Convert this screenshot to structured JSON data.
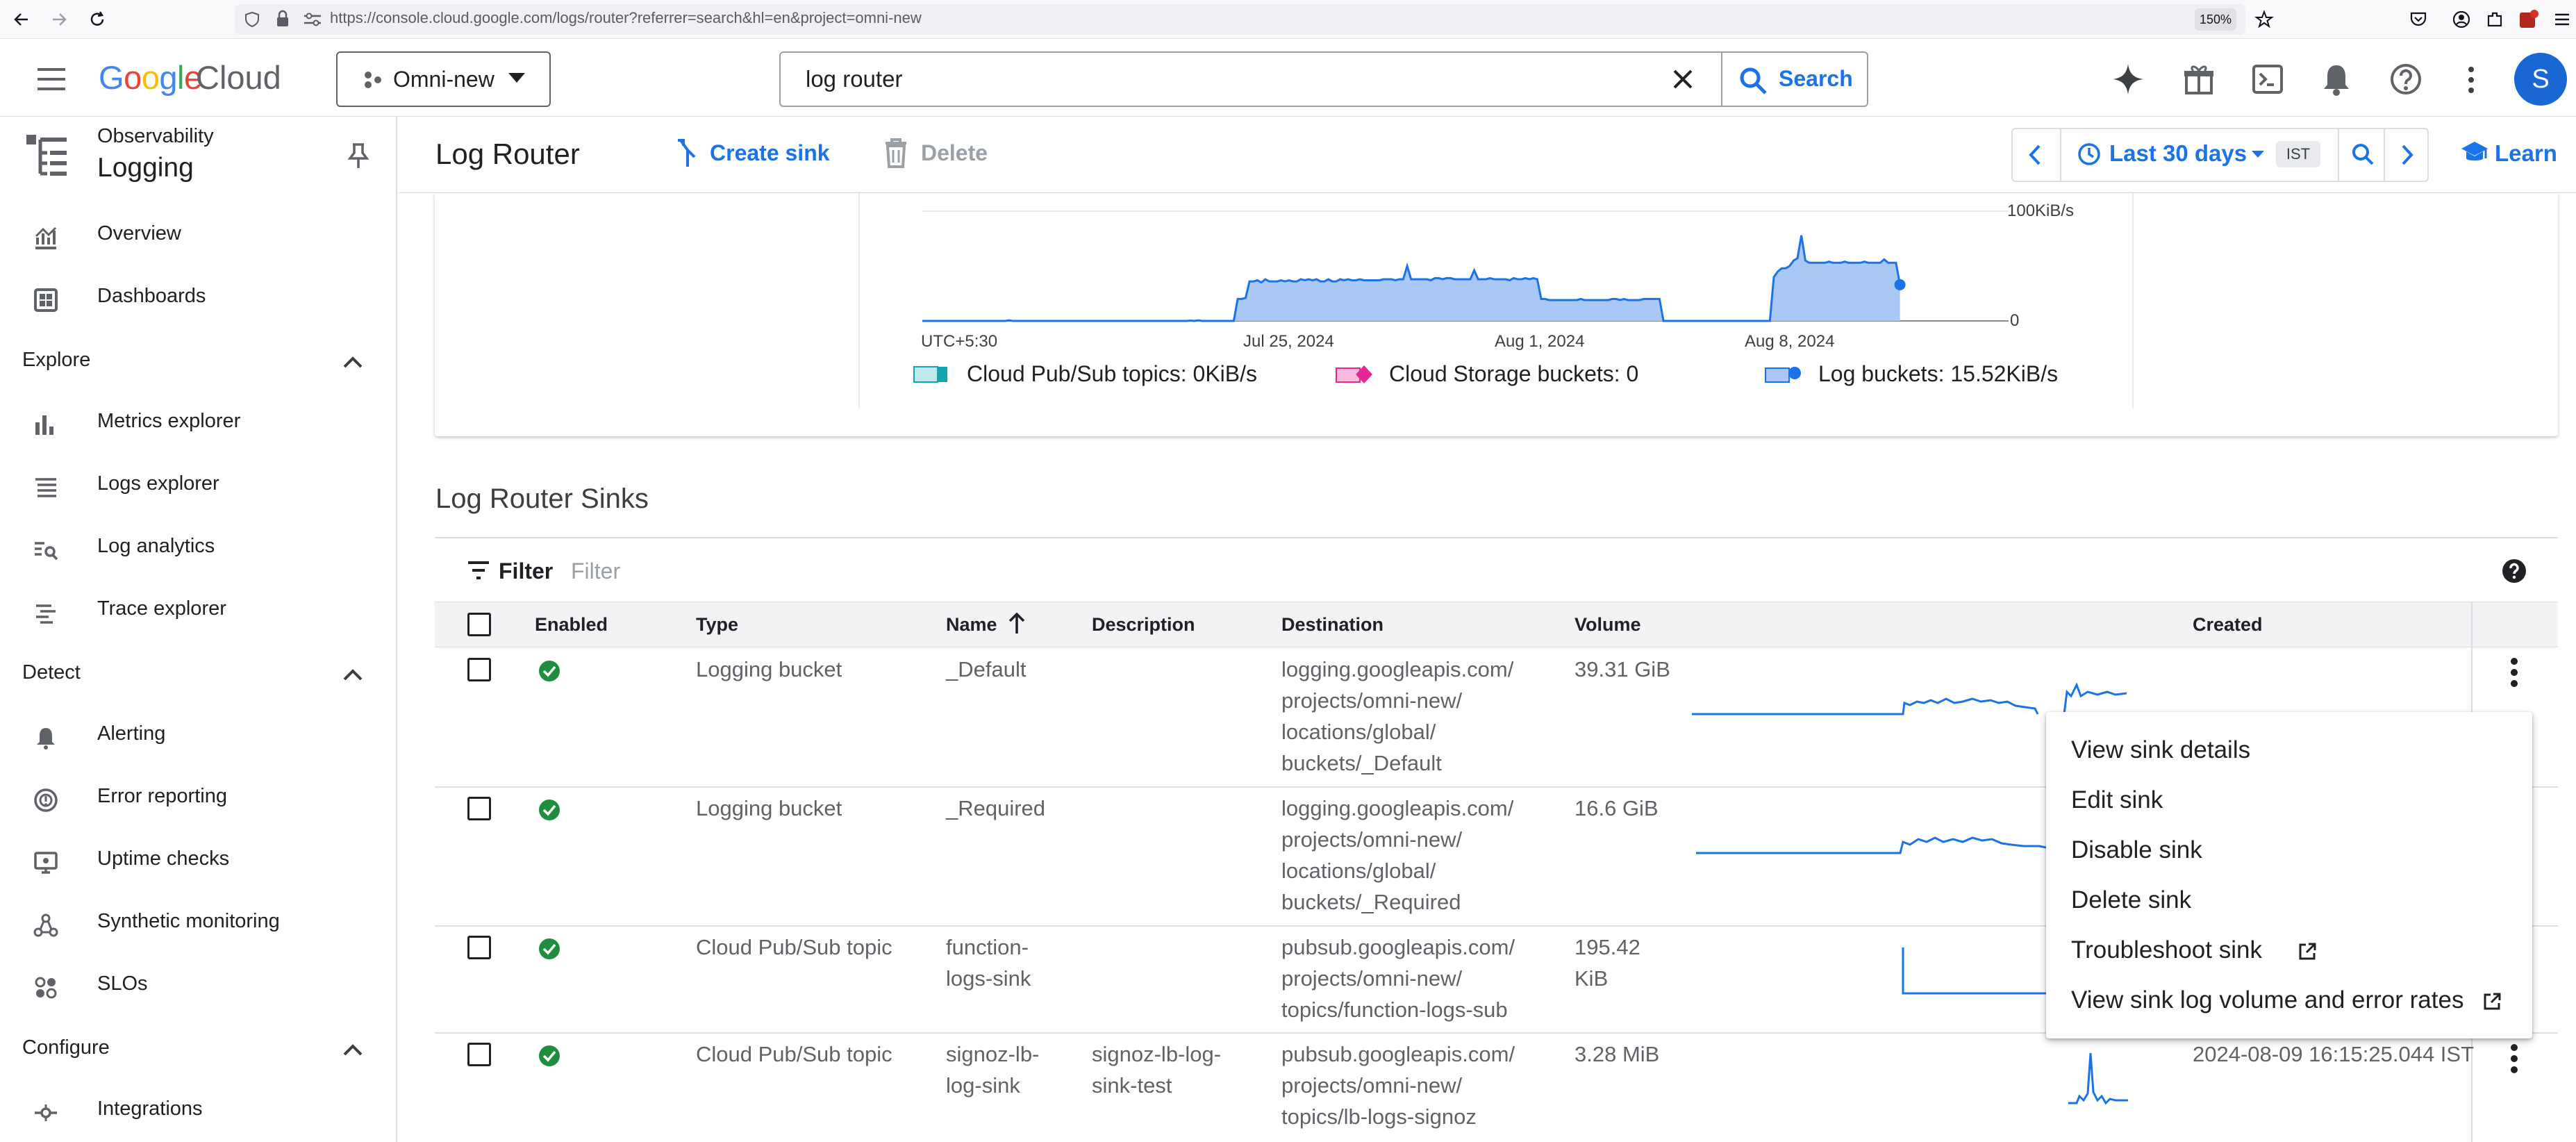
{
  "browser": {
    "url": "https://console.cloud.google.com/logs/router?referrer=search&hl=en&project=omni-new",
    "zoom": "150%"
  },
  "header": {
    "logo_google": "Google",
    "logo_cloud": "Cloud",
    "project": "Omni-new",
    "search_value": "log router",
    "search_button": "Search",
    "avatar_letter": "S"
  },
  "sidebar": {
    "product_parent": "Observability",
    "product": "Logging",
    "top_items": [
      {
        "label": "Overview",
        "icon": "overview-icon"
      },
      {
        "label": "Dashboards",
        "icon": "dashboards-icon"
      }
    ],
    "sections": [
      {
        "title": "Explore",
        "items": [
          "Metrics explorer",
          "Logs explorer",
          "Log analytics",
          "Trace explorer"
        ]
      },
      {
        "title": "Detect",
        "items": [
          "Alerting",
          "Error reporting",
          "Uptime checks",
          "Synthetic monitoring",
          "SLOs"
        ]
      },
      {
        "title": "Configure",
        "items": [
          "Integrations"
        ]
      }
    ]
  },
  "toolbar": {
    "title": "Log Router",
    "create_sink": "Create sink",
    "delete": "Delete",
    "time_range": "Last 30 days",
    "timezone": "IST",
    "learn": "Learn"
  },
  "chart_data": {
    "type": "area",
    "y_max_label": "100KiB/s",
    "y_min_label": "0",
    "x_ticks": [
      "UTC+5:30",
      "Jul 25, 2024",
      "Aug 1, 2024",
      "Aug 8, 2024"
    ],
    "series": [
      {
        "name": "Cloud Pub/Sub topics",
        "value_label": "0KiB/s",
        "color": "#12a4af"
      },
      {
        "name": "Cloud Storage buckets",
        "value_label": "0",
        "color": "#e52592"
      },
      {
        "name": "Log buckets",
        "value_label": "15.52KiB/s",
        "color": "#1a73e8"
      }
    ],
    "log_buckets_series": [
      0,
      0,
      0,
      0,
      0,
      0,
      0,
      0,
      0,
      0,
      0,
      0,
      0,
      0,
      0,
      0,
      0,
      0,
      0,
      0,
      0,
      0,
      0.5,
      0,
      0,
      0,
      0,
      0,
      0,
      0,
      0,
      0,
      0,
      0,
      0,
      0,
      0,
      0,
      0,
      0,
      0,
      0,
      0,
      0,
      0,
      0,
      0,
      0,
      0,
      0,
      0,
      0,
      0,
      0,
      0,
      0,
      0,
      0,
      0,
      0,
      0,
      0,
      0,
      0,
      0,
      0,
      0,
      0,
      0.3,
      0,
      0.5,
      0,
      0,
      0,
      0,
      0,
      0,
      0,
      0,
      0,
      20,
      20,
      21,
      36,
      36,
      37,
      35,
      38,
      36,
      36,
      36,
      37,
      36,
      37,
      36,
      36,
      38,
      37,
      38,
      37,
      38,
      36,
      36,
      38,
      36,
      36,
      38,
      37,
      38,
      37,
      37,
      38,
      37,
      37,
      37,
      37,
      37,
      38,
      38,
      38,
      37,
      38,
      38,
      50,
      38,
      38,
      38,
      38,
      38,
      37,
      39,
      39,
      38,
      39,
      39,
      38,
      38,
      38,
      38,
      38,
      46,
      38,
      38,
      38,
      39,
      38,
      38,
      38,
      38,
      37,
      39,
      38,
      38,
      39,
      38,
      39,
      38,
      20,
      20,
      19,
      19,
      19,
      19,
      19,
      19,
      19,
      19,
      20,
      19,
      19,
      19,
      19,
      19,
      19,
      19,
      20,
      20,
      19,
      20,
      19,
      19,
      19,
      19,
      20,
      20,
      20,
      20,
      20,
      0,
      0,
      0,
      0,
      0,
      0,
      0,
      0,
      0,
      0,
      0,
      0,
      0,
      0,
      0,
      0,
      0,
      0,
      0,
      0,
      0,
      0,
      0,
      0,
      0,
      0,
      0,
      0,
      40,
      45,
      48,
      48,
      50,
      55,
      57,
      78,
      55,
      53,
      53,
      53,
      53,
      53,
      54,
      53,
      53,
      53,
      54,
      53,
      53,
      53,
      53,
      54,
      53,
      53,
      53,
      53,
      56,
      53,
      53,
      53,
      33
    ],
    "y_range": [
      0,
      100
    ]
  },
  "sinks": {
    "title": "Log Router Sinks",
    "filter_label": "Filter",
    "filter_placeholder": "Filter",
    "columns": [
      "Enabled",
      "Type",
      "Name",
      "Description",
      "Destination",
      "Volume",
      "Created"
    ],
    "rows": [
      {
        "type": "Logging bucket",
        "name": [
          "_Default"
        ],
        "description": [],
        "destination": [
          "logging.googleapis.com/",
          "projects/omni-new/",
          "locations/global/",
          "buckets/_Default"
        ],
        "volume": [
          "39.31 GiB"
        ],
        "created": ""
      },
      {
        "type": "Logging bucket",
        "name": [
          "_Required"
        ],
        "description": [],
        "destination": [
          "logging.googleapis.com/",
          "projects/omni-new/",
          "locations/global/",
          "buckets/_Required"
        ],
        "volume": [
          "16.6 GiB"
        ],
        "created": ""
      },
      {
        "type": "Cloud Pub/Sub topic",
        "name": [
          "function-",
          "logs-sink"
        ],
        "description": [],
        "destination": [
          "pubsub.googleapis.com/",
          "projects/omni-new/",
          "topics/function-logs-sub"
        ],
        "volume": [
          "195.42",
          "KiB"
        ],
        "created": ""
      },
      {
        "type": "Cloud Pub/Sub topic",
        "name": [
          "signoz-lb-",
          "log-sink"
        ],
        "description": [
          "signoz-lb-log-",
          "sink-test"
        ],
        "destination": [
          "pubsub.googleapis.com/",
          "projects/omni-new/",
          "topics/lb-logs-signoz"
        ],
        "volume": [
          "3.28 MiB"
        ],
        "created": "2024-08-09 16:15:25.044 IST"
      }
    ]
  },
  "context_menu": {
    "items": [
      {
        "label": "View sink details",
        "external": false
      },
      {
        "label": "Edit sink",
        "external": false
      },
      {
        "label": "Disable sink",
        "external": false
      },
      {
        "label": "Delete sink",
        "external": false
      },
      {
        "label": "Troubleshoot sink",
        "external": true
      },
      {
        "label": "View sink log volume and error rates",
        "external": true
      }
    ]
  },
  "colors": {
    "accent": "#1a73e8",
    "enabled_green": "#1e8e3e",
    "chart_fill": "#a9c8f5"
  }
}
